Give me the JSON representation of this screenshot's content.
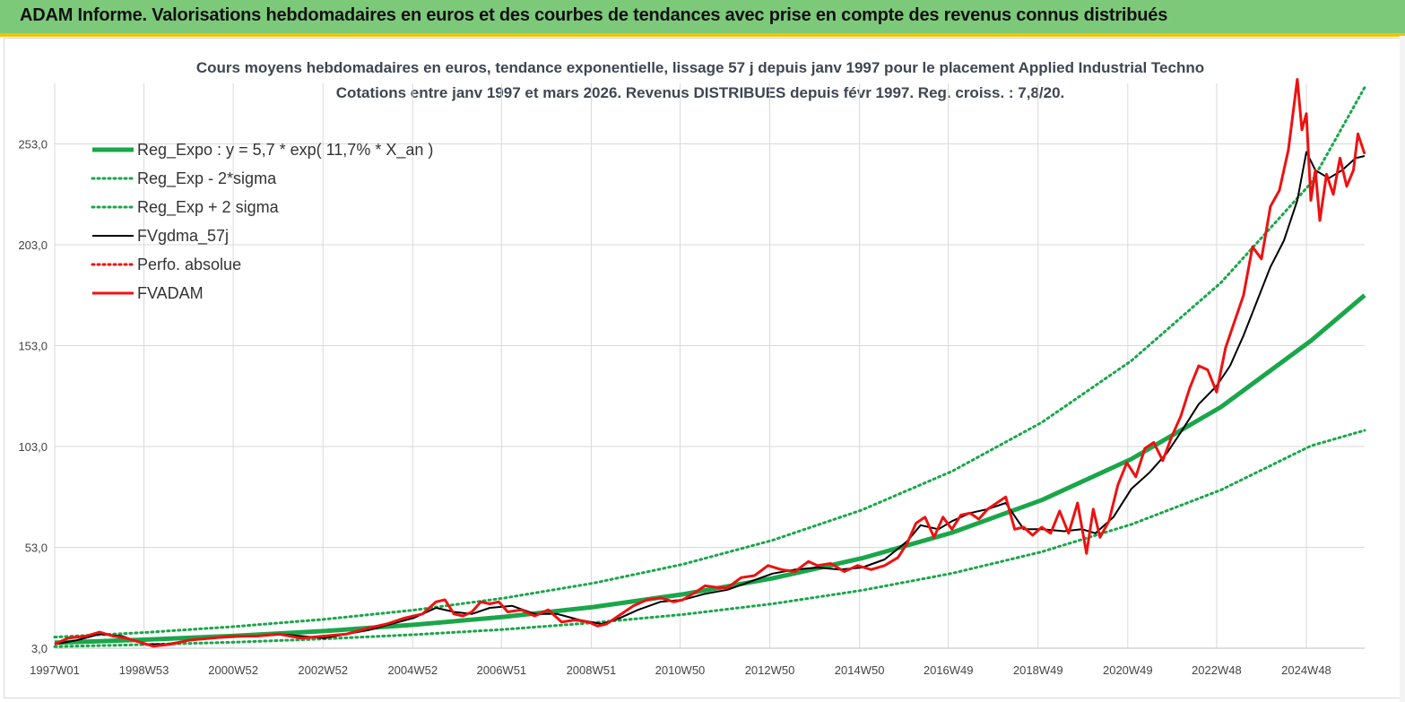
{
  "header": {
    "title": "ADAM Informe. Valorisations hebdomadaires en euros et des courbes de tendances avec prise en compte des revenus connus distribués"
  },
  "colors": {
    "header_bg": "#7dc97a",
    "accent": "#f2c400",
    "trend": "#1aa64a",
    "price": "#ee1111",
    "smooth": "#000000"
  },
  "chart_data": {
    "type": "line",
    "title": "Cours moyens hebdomadaires en euros, tendance exponentielle, lissage 57 j depuis janv 1997 pour le placement Applied Industrial Techno",
    "subtitle": "Cotations entre janv 1997 et mars 2026. Revenus DISTRIBUES depuis févr 1997. Reg. croiss. : 7,8/20.",
    "x_unit": "year",
    "xlim": [
      1997.0,
      2026.2
    ],
    "ylim": [
      3,
      283
    ],
    "yticks": [
      3,
      53,
      103,
      153,
      203,
      253
    ],
    "ytick_labels": [
      "3,0",
      "53,0",
      "103,0",
      "153,0",
      "203,0",
      "253,0"
    ],
    "xticks": [
      {
        "x": 1997.0,
        "label": "1997W01"
      },
      {
        "x": 1998.99,
        "label": "1998W53"
      },
      {
        "x": 2000.98,
        "label": "2000W52"
      },
      {
        "x": 2002.98,
        "label": "2002W52"
      },
      {
        "x": 2004.98,
        "label": "2004W52"
      },
      {
        "x": 2006.96,
        "label": "2006W51"
      },
      {
        "x": 2008.96,
        "label": "2008W51"
      },
      {
        "x": 2010.94,
        "label": "2010W50"
      },
      {
        "x": 2012.94,
        "label": "2012W50"
      },
      {
        "x": 2014.94,
        "label": "2014W50"
      },
      {
        "x": 2016.92,
        "label": "2016W49"
      },
      {
        "x": 2018.92,
        "label": "2018W49"
      },
      {
        "x": 2020.92,
        "label": "2020W49"
      },
      {
        "x": 2022.9,
        "label": "2022W48"
      },
      {
        "x": 2024.9,
        "label": "2024W48"
      }
    ],
    "grid": true,
    "legend_position": "top-left",
    "series": [
      {
        "name": "Reg_Expo : y = 5,7 * exp( 11,7% *  X_an )",
        "style": "solid-thick",
        "color": "#1aa64a",
        "x": [
          1997,
          1999,
          2001,
          2003,
          2005,
          2007,
          2009,
          2011,
          2013,
          2015,
          2017,
          2019,
          2021,
          2023,
          2025,
          2026.2
        ],
        "y": [
          5.7,
          7.2,
          9.1,
          11.5,
          14.6,
          18.5,
          23.4,
          29.7,
          37.6,
          47.6,
          60.3,
          76.4,
          96.8,
          122.6,
          155.4,
          178.0
        ]
      },
      {
        "name": "Reg_Exp - 2*sigma",
        "style": "dotted",
        "color": "#1aa64a",
        "x": [
          1997,
          1999,
          2001,
          2003,
          2005,
          2007,
          2009,
          2011,
          2013,
          2015,
          2017,
          2019,
          2021,
          2023,
          2025,
          2026.2
        ],
        "y": [
          3.8,
          4.8,
          6.0,
          7.6,
          9.7,
          12.3,
          15.6,
          19.7,
          25.0,
          31.7,
          40.1,
          50.8,
          64.4,
          81.5,
          103.3,
          111.0
        ]
      },
      {
        "name": "Reg_Exp + 2 sigma",
        "style": "dotted",
        "color": "#1aa64a",
        "x": [
          1997,
          1999,
          2001,
          2003,
          2005,
          2007,
          2009,
          2011,
          2013,
          2015,
          2017,
          2019,
          2021,
          2023,
          2025,
          2026.2
        ],
        "y": [
          8.5,
          10.8,
          13.7,
          17.3,
          21.9,
          27.8,
          35.2,
          44.6,
          56.5,
          71.6,
          90.7,
          114.9,
          145.5,
          184.3,
          233.5,
          281.0
        ]
      },
      {
        "name": "FVgdma_57j",
        "style": "solid",
        "color": "#000000",
        "x": [
          1997.0,
          1997.5,
          1998.0,
          1998.5,
          1999.0,
          1999.5,
          2000.0,
          2000.5,
          2001.0,
          2001.5,
          2002.0,
          2002.5,
          2003.0,
          2003.5,
          2004.0,
          2004.5,
          2005.0,
          2005.5,
          2005.9,
          2006.3,
          2006.7,
          2007.2,
          2007.7,
          2008.2,
          2008.7,
          2009.2,
          2009.6,
          2010.0,
          2010.5,
          2011.0,
          2011.5,
          2012.0,
          2012.5,
          2013.0,
          2013.5,
          2014.0,
          2014.5,
          2015.0,
          2015.5,
          2016.0,
          2016.3,
          2016.7,
          2017.0,
          2017.4,
          2017.8,
          2018.2,
          2018.6,
          2019.0,
          2019.5,
          2019.9,
          2020.2,
          2020.6,
          2021.0,
          2021.4,
          2021.8,
          2022.1,
          2022.5,
          2022.9,
          2023.2,
          2023.5,
          2023.8,
          2024.1,
          2024.4,
          2024.7,
          2024.9,
          2025.1,
          2025.4,
          2025.7,
          2026.0,
          2026.2
        ],
        "y": [
          5,
          7,
          10,
          9,
          5,
          5,
          7,
          8,
          9,
          9,
          10,
          9,
          8,
          10,
          12,
          15,
          18,
          23,
          21,
          20,
          23,
          24,
          20,
          20,
          17,
          15,
          18,
          22,
          26,
          27,
          30,
          32,
          36,
          40,
          42,
          43,
          42,
          43,
          47,
          56,
          64,
          62,
          66,
          70,
          72,
          75,
          62,
          62,
          61,
          62,
          60,
          68,
          82,
          90,
          100,
          110,
          124,
          133,
          143,
          158,
          175,
          192,
          205,
          225,
          249,
          240,
          236,
          240,
          246,
          247
        ]
      },
      {
        "name": "Perfo. absolue",
        "style": "dotted",
        "color": "#ee1111",
        "x": [],
        "y": []
      },
      {
        "name": "FVADAM",
        "style": "solid-thick",
        "color": "#ee1111",
        "x": [
          1997.0,
          1997.3,
          1997.7,
          1998.0,
          1998.3,
          1998.6,
          1998.9,
          1999.2,
          1999.6,
          2000.0,
          2000.5,
          2001.0,
          2001.5,
          2002.0,
          2002.5,
          2003.0,
          2003.5,
          2004.0,
          2004.4,
          2004.8,
          2005.2,
          2005.5,
          2005.7,
          2005.9,
          2006.1,
          2006.3,
          2006.5,
          2006.7,
          2006.9,
          2007.1,
          2007.4,
          2007.7,
          2008.0,
          2008.3,
          2008.6,
          2008.9,
          2009.1,
          2009.3,
          2009.5,
          2009.7,
          2009.9,
          2010.2,
          2010.5,
          2010.8,
          2011.0,
          2011.3,
          2011.5,
          2011.8,
          2012.0,
          2012.3,
          2012.6,
          2012.9,
          2013.2,
          2013.5,
          2013.8,
          2014.0,
          2014.3,
          2014.6,
          2014.9,
          2015.2,
          2015.5,
          2015.8,
          2016.0,
          2016.2,
          2016.4,
          2016.6,
          2016.8,
          2017.0,
          2017.2,
          2017.4,
          2017.6,
          2017.8,
          2018.0,
          2018.2,
          2018.4,
          2018.6,
          2018.8,
          2019.0,
          2019.2,
          2019.4,
          2019.6,
          2019.8,
          2020.0,
          2020.15,
          2020.3,
          2020.5,
          2020.7,
          2020.9,
          2021.1,
          2021.3,
          2021.5,
          2021.7,
          2021.9,
          2022.1,
          2022.3,
          2022.5,
          2022.7,
          2022.9,
          2023.1,
          2023.3,
          2023.5,
          2023.7,
          2023.9,
          2024.1,
          2024.3,
          2024.5,
          2024.7,
          2024.8,
          2024.9,
          2025.0,
          2025.1,
          2025.2,
          2025.35,
          2025.5,
          2025.65,
          2025.8,
          2025.95,
          2026.05,
          2026.2
        ],
        "y": [
          5,
          8,
          9,
          11,
          9,
          8,
          6,
          4,
          5,
          7,
          8,
          9,
          9,
          10,
          8,
          9,
          10,
          13,
          15,
          18,
          20,
          26,
          27,
          20,
          19,
          21,
          26,
          25,
          26,
          21,
          22,
          19,
          22,
          16,
          17,
          16,
          14,
          15,
          18,
          21,
          24,
          27,
          28,
          26,
          27,
          31,
          34,
          33,
          33,
          38,
          39,
          44,
          42,
          41,
          46,
          44,
          45,
          41,
          44,
          42,
          44,
          48,
          55,
          65,
          68,
          58,
          68,
          62,
          69,
          70,
          67,
          72,
          75,
          78,
          62,
          63,
          59,
          63,
          60,
          71,
          60,
          75,
          50,
          72,
          58,
          66,
          84,
          95,
          88,
          102,
          105,
          96,
          108,
          118,
          132,
          143,
          141,
          130,
          152,
          165,
          178,
          202,
          196,
          222,
          230,
          250,
          285,
          260,
          268,
          225,
          240,
          215,
          238,
          228,
          246,
          232,
          240,
          258,
          248
        ]
      }
    ]
  }
}
